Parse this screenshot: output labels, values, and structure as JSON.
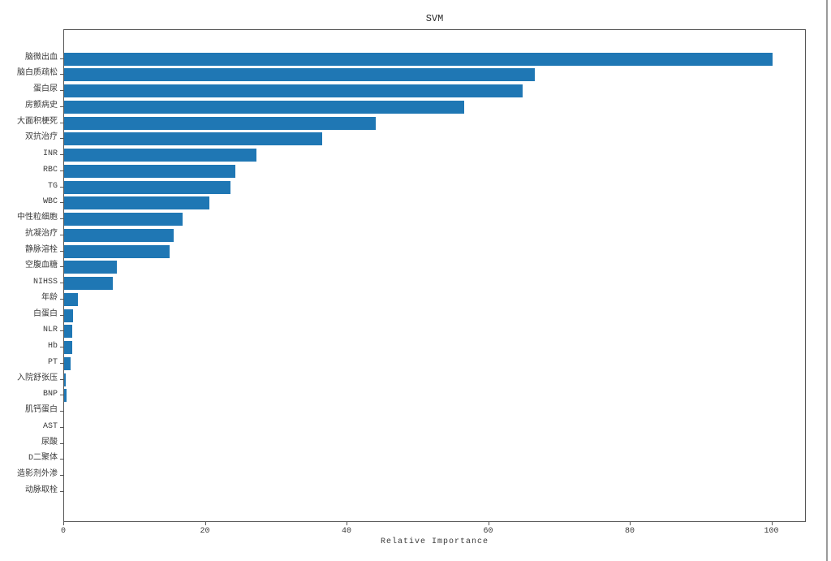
{
  "chart_data": {
    "type": "bar",
    "orientation": "horizontal",
    "title": "SVM",
    "xlabel": "Relative Importance",
    "ylabel": "",
    "category_order": "top-to-bottom",
    "categories": [
      "脑微出血",
      "脑白质疏松",
      "蛋白尿",
      "房颤病史",
      "大面积梗死",
      "双抗治疗",
      "INR",
      "RBC",
      "TG",
      "WBC",
      "中性粒细胞",
      "抗凝治疗",
      "静脉溶栓",
      "空腹血糖",
      "NIHSS",
      "年龄",
      "白蛋白",
      "NLR",
      "Hb",
      "PT",
      "入院舒张压",
      "BNP",
      "肌钙蛋白",
      "AST",
      "尿酸",
      "D二聚体",
      "造影剂外渗",
      "动脉取栓"
    ],
    "values": [
      100,
      66.5,
      64.8,
      56.5,
      44.0,
      36.4,
      27.2,
      24.2,
      23.5,
      20.5,
      16.7,
      15.5,
      14.9,
      7.5,
      6.9,
      2.0,
      1.3,
      1.2,
      1.1,
      0.9,
      0.25,
      0.4,
      0,
      0,
      0,
      0,
      0,
      0
    ],
    "xticks": [
      0,
      20,
      40,
      60,
      80,
      100
    ],
    "xlim": [
      0,
      104.8
    ],
    "grid": false,
    "legend": false,
    "bar_color": "#1f77b4",
    "frame_color": "#555555",
    "background_color": "#ffffff"
  }
}
